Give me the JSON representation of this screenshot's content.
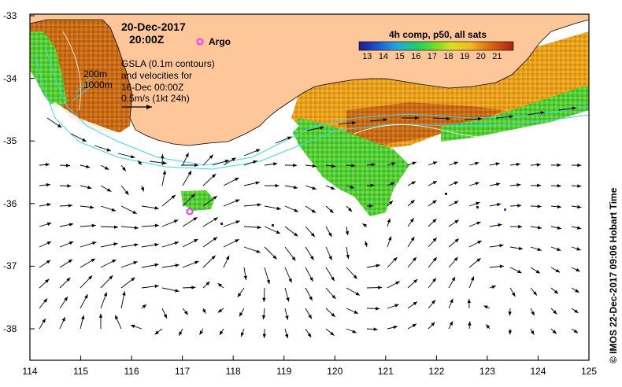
{
  "map": {
    "date": "20-Dec-2017",
    "time": "20:00Z",
    "argo_label": "Argo",
    "gsla_text": [
      "GSLA (0.1m contours)",
      "and velocities for",
      "16-Dec 00:00Z"
    ],
    "scale_label": "0.5m/s (1kt 24h)",
    "isobath_labels": [
      "200m",
      "1000m"
    ],
    "x_ticks": [
      "114",
      "115",
      "116",
      "117",
      "118",
      "119",
      "120",
      "121",
      "122",
      "123",
      "124",
      "125"
    ],
    "y_ticks": [
      "-33",
      "-34",
      "-35",
      "-36",
      "-37",
      "-38"
    ],
    "colorbar": {
      "title": "4h comp, p50, all sats",
      "labels": [
        "13",
        "14",
        "15",
        "16",
        "17",
        "18",
        "19",
        "20",
        "21"
      ],
      "min": 12.5,
      "max": 22
    },
    "credit": "© IMOS 22-Dec-2017 09:06 Hobart Time",
    "colors": {
      "land": "#fdc79a",
      "isobath": "#3fd6e6",
      "argo": "#ff33ff"
    }
  }
}
